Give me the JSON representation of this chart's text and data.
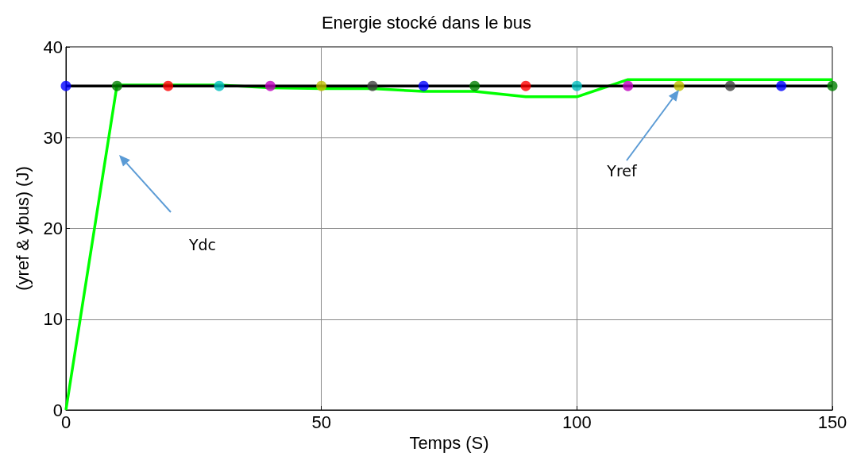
{
  "chart_data": {
    "type": "line",
    "title": "Energie stocké dans le bus",
    "xlabel": "Temps (S)",
    "ylabel": "(yref & ybus) (J)",
    "xlim": [
      0,
      150
    ],
    "xticks": [
      0,
      50,
      100,
      150
    ],
    "ylim": [
      0,
      40
    ],
    "yticks": [
      0,
      10,
      20,
      30,
      40
    ],
    "grid": true,
    "series": [
      {
        "color": "#00ff00",
        "x": [
          0,
          10,
          30,
          40,
          50,
          60,
          70,
          80,
          90,
          100,
          110,
          150
        ],
        "values": [
          0,
          35.8,
          35.8,
          35.5,
          35.4,
          35.4,
          35.1,
          35.1,
          34.5,
          34.5,
          36.4,
          36.4
        ]
      },
      {
        "color": "#000000",
        "x": [
          0,
          150
        ],
        "values": [
          35.7,
          35.7
        ]
      },
      {
        "type": "scatter",
        "marker": "circle",
        "x": [
          0,
          10,
          20,
          30,
          40,
          50,
          60,
          70,
          80,
          90,
          100,
          110,
          120,
          130,
          140,
          150
        ],
        "values": [
          35.7,
          35.7,
          35.7,
          35.7,
          35.7,
          35.7,
          35.7,
          35.7,
          35.7,
          35.7,
          35.7,
          35.7,
          35.7,
          35.7,
          35.7,
          35.7
        ],
        "colors": [
          "#0000ff",
          "#008000",
          "#ff0000",
          "#00bfbf",
          "#bf00bf",
          "#bfbf00",
          "#404040",
          "#0000ff",
          "#008000",
          "#ff0000",
          "#00bfbf",
          "#bf00bf",
          "#bfbf00",
          "#404040",
          "#0000ff",
          "#008000"
        ]
      }
    ],
    "annotations": [
      "Ydc",
      "Yref"
    ]
  }
}
